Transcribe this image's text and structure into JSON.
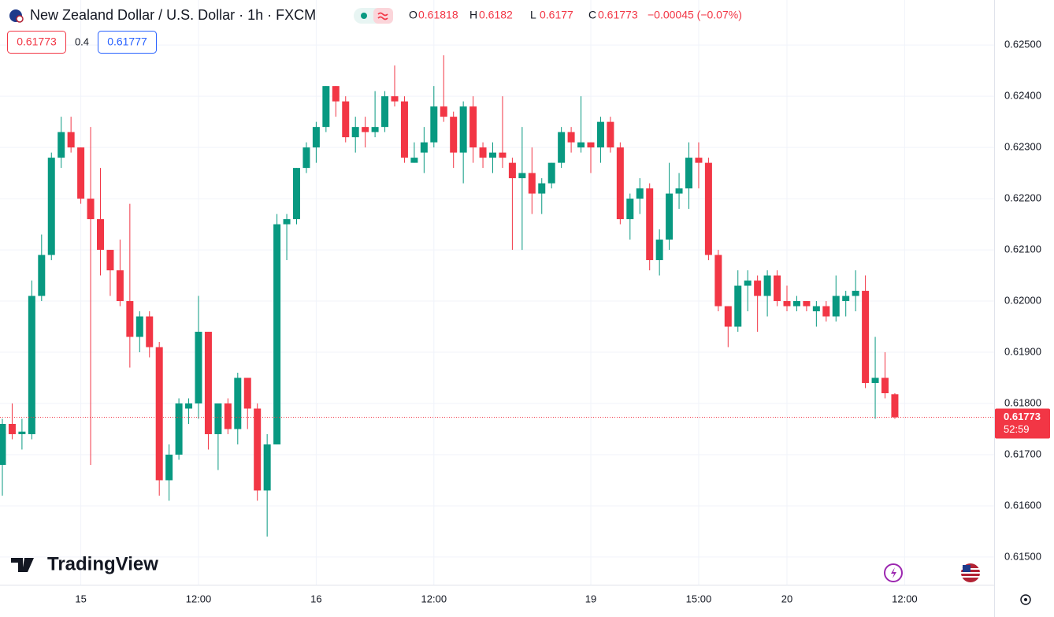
{
  "chart_data": {
    "type": "candlestick",
    "title": "New Zealand Dollar / U.S. Dollar · 1h · FXCM",
    "legend": [
      {
        "label": "O",
        "value": 0.61818
      },
      {
        "label": "H",
        "value": 0.6182
      },
      {
        "label": "L",
        "value": 0.6177
      },
      {
        "label": "C",
        "value": 0.61773
      }
    ],
    "change": "−0.00045 (−0.07%)",
    "bid": 0.61773,
    "spread": 0.4,
    "ask": 0.61777,
    "current_price": 0.61773,
    "countdown": "52:59",
    "logo": "TradingView",
    "up_color": "#089981",
    "down_color": "#f23645",
    "grid": true,
    "ylim": [
      0.61446,
      0.62588
    ],
    "yticks": [
      {
        "value": 0.615,
        "label": "0.61500"
      },
      {
        "value": 0.616,
        "label": "0.61600"
      },
      {
        "value": 0.617,
        "label": "0.61700"
      },
      {
        "value": 0.618,
        "label": "0.61800"
      },
      {
        "value": 0.619,
        "label": "0.61900"
      },
      {
        "value": 0.62,
        "label": "0.62000"
      },
      {
        "value": 0.621,
        "label": "0.62100"
      },
      {
        "value": 0.622,
        "label": "0.62200"
      },
      {
        "value": 0.623,
        "label": "0.62300"
      },
      {
        "value": 0.624,
        "label": "0.62400"
      },
      {
        "value": 0.625,
        "label": "0.62500"
      }
    ],
    "categories": [
      null,
      null,
      null,
      null,
      null,
      null,
      null,
      null,
      "15",
      null,
      null,
      null,
      null,
      null,
      null,
      null,
      null,
      null,
      null,
      null,
      "12:00",
      null,
      null,
      null,
      null,
      null,
      null,
      null,
      null,
      null,
      null,
      null,
      "16",
      null,
      null,
      null,
      null,
      null,
      null,
      null,
      null,
      null,
      null,
      null,
      "12:00",
      null,
      null,
      null,
      null,
      null,
      null,
      null,
      null,
      null,
      null,
      null,
      null,
      null,
      null,
      null,
      "19",
      null,
      null,
      null,
      null,
      null,
      null,
      null,
      null,
      null,
      null,
      "15:00",
      null,
      null,
      null,
      null,
      null,
      null,
      null,
      null,
      "20",
      null,
      null,
      null,
      null,
      null,
      null,
      null,
      null,
      null,
      null,
      null,
      "12:00"
    ],
    "open": [
      0.6168,
      0.6176,
      0.6174,
      0.6174,
      0.6201,
      0.6209,
      0.6228,
      0.6233,
      0.623,
      0.622,
      0.6216,
      0.621,
      0.6206,
      0.62,
      0.6193,
      0.6197,
      0.6191,
      0.6165,
      0.617,
      0.6179,
      0.618,
      0.6194,
      0.6174,
      0.618,
      0.6175,
      0.6185,
      0.6179,
      0.6163,
      0.6172,
      0.6215,
      0.6216,
      0.6226,
      0.623,
      0.6234,
      0.6242,
      0.6239,
      0.6232,
      0.6234,
      0.6233,
      0.6234,
      0.624,
      0.6239,
      0.6227,
      0.6229,
      0.6231,
      0.6238,
      0.6236,
      0.6229,
      0.6238,
      0.623,
      0.6228,
      0.6229,
      0.6227,
      0.6224,
      0.6225,
      0.6221,
      0.6223,
      0.6227,
      0.6233,
      0.623,
      0.6231,
      0.623,
      0.6235,
      0.623,
      0.6216,
      0.622,
      0.6222,
      0.6208,
      0.6212,
      0.6221,
      0.6222,
      0.6228,
      0.6227,
      0.6209,
      0.6199,
      0.6195,
      0.6203,
      0.6204,
      0.6201,
      0.6205,
      0.62,
      0.6199,
      0.62,
      0.6198,
      0.6199,
      0.6197,
      0.62,
      0.6201,
      0.6202,
      0.6184,
      0.6185,
      0.61818,
      null
    ],
    "high": [
      0.6177,
      0.618,
      0.6177,
      0.6204,
      0.6213,
      0.6229,
      0.6236,
      0.6236,
      0.623,
      0.6234,
      0.6226,
      0.621,
      0.6212,
      0.6219,
      0.6198,
      0.6198,
      0.6192,
      0.6172,
      0.6181,
      0.6181,
      0.6201,
      0.6194,
      0.618,
      0.6181,
      0.6186,
      0.6185,
      0.618,
      0.6174,
      0.6217,
      0.6217,
      0.6226,
      0.6231,
      0.6235,
      0.6242,
      0.6242,
      0.624,
      0.6236,
      0.6236,
      0.6241,
      0.6241,
      0.6246,
      0.624,
      0.6231,
      0.6234,
      0.6242,
      0.6248,
      0.6237,
      0.6239,
      0.624,
      0.6231,
      0.6231,
      0.624,
      0.6228,
      0.6234,
      0.623,
      0.6224,
      0.6227,
      0.6234,
      0.6234,
      0.624,
      0.6231,
      0.6236,
      0.6236,
      0.6231,
      0.6221,
      0.6224,
      0.6223,
      0.6214,
      0.6227,
      0.6225,
      0.6231,
      0.6231,
      0.6228,
      0.621,
      0.6199,
      0.6206,
      0.6206,
      0.6205,
      0.6206,
      0.6206,
      0.6203,
      0.6201,
      0.62,
      0.62,
      0.62,
      0.6205,
      0.6202,
      0.6206,
      0.6205,
      0.6193,
      0.619,
      0.6182,
      null
    ],
    "low": [
      0.6162,
      0.6173,
      0.6171,
      0.6173,
      0.62,
      0.6208,
      0.6226,
      0.6229,
      0.6219,
      0.6168,
      0.6205,
      0.6201,
      0.6199,
      0.6187,
      0.619,
      0.6189,
      0.6162,
      0.6161,
      0.6169,
      0.6176,
      0.6177,
      0.6171,
      0.6167,
      0.6174,
      0.6172,
      0.6175,
      0.6161,
      0.6154,
      0.6172,
      0.6208,
      0.6215,
      0.6225,
      0.6227,
      0.6233,
      0.6236,
      0.6231,
      0.6229,
      0.623,
      0.6232,
      0.6233,
      0.6238,
      0.6227,
      0.6227,
      0.6225,
      0.623,
      0.6235,
      0.6226,
      0.6223,
      0.6227,
      0.6226,
      0.6225,
      0.6226,
      0.621,
      0.621,
      0.6217,
      0.6217,
      0.6222,
      0.6226,
      0.6229,
      0.6229,
      0.6225,
      0.6227,
      0.6229,
      0.6215,
      0.6212,
      0.6217,
      0.6206,
      0.6205,
      0.621,
      0.6218,
      0.6218,
      0.6222,
      0.6208,
      0.6198,
      0.6191,
      0.6194,
      0.6198,
      0.6194,
      0.6197,
      0.6199,
      0.6198,
      0.6198,
      0.6198,
      0.6195,
      0.6196,
      0.6196,
      0.6197,
      0.6198,
      0.6183,
      0.6177,
      0.6181,
      0.6177,
      null
    ],
    "close": [
      0.6176,
      0.6174,
      0.61745,
      0.6201,
      0.6209,
      0.6228,
      0.6233,
      0.623,
      0.622,
      0.6216,
      0.621,
      0.6206,
      0.62,
      0.6193,
      0.6197,
      0.6191,
      0.6165,
      0.617,
      0.618,
      0.618,
      0.6194,
      0.6174,
      0.618,
      0.6175,
      0.6185,
      0.6179,
      0.6163,
      0.6172,
      0.6215,
      0.6216,
      0.6226,
      0.623,
      0.6234,
      0.6242,
      0.6239,
      0.6232,
      0.6234,
      0.6233,
      0.6234,
      0.624,
      0.6239,
      0.6228,
      0.6228,
      0.6231,
      0.6238,
      0.6236,
      0.6229,
      0.6238,
      0.623,
      0.6228,
      0.6229,
      0.6228,
      0.6224,
      0.6225,
      0.6221,
      0.6223,
      0.6227,
      0.6233,
      0.6231,
      0.6231,
      0.623,
      0.6235,
      0.623,
      0.6216,
      0.622,
      0.6222,
      0.6208,
      0.6212,
      0.6221,
      0.6222,
      0.6228,
      0.6227,
      0.6209,
      0.6199,
      0.6195,
      0.6203,
      0.6204,
      0.6201,
      0.6205,
      0.62,
      0.6199,
      0.62,
      0.6199,
      0.6199,
      0.6197,
      0.6201,
      0.6201,
      0.6202,
      0.6184,
      0.6185,
      0.6182,
      0.61773,
      null
    ]
  }
}
